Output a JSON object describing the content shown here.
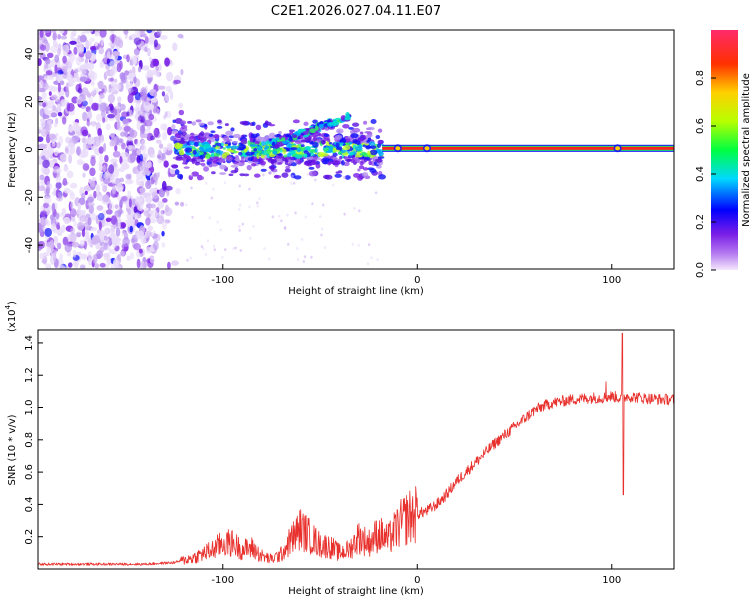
{
  "chart_data": [
    {
      "type": "heatmap",
      "title": "C2E1.2026.027.04.11.E07",
      "xlabel": "Height of straight line (km)",
      "ylabel": "Frequency (Hz)",
      "xlim": [
        -195,
        132
      ],
      "ylim": [
        -50,
        50
      ],
      "xticks": [
        -100,
        0,
        100
      ],
      "yticks": [
        -40,
        -20,
        0,
        20,
        40
      ],
      "colorbar": {
        "label": "Normalized spectral amplitude",
        "range": [
          0,
          1
        ],
        "ticks": [
          "0.0",
          "0.2",
          "0.4",
          "0.6",
          "0.8"
        ]
      },
      "features": {
        "noise_region_x": [
          -195,
          -120
        ],
        "signal_band_x": [
          -125,
          -18
        ],
        "strong_line_x": [
          -18,
          132
        ],
        "strong_line_freq": 0.5,
        "upper_branch": {
          "x": [
            -75,
            -35
          ],
          "freq": [
            2,
            14
          ]
        },
        "line_bright_spots_x": [
          -10,
          5,
          103
        ]
      }
    },
    {
      "type": "line",
      "xlabel": "Height of straight line (km)",
      "ylabel": "SNR (10 * v/v)",
      "yscale_label": "(x10",
      "yscale_exp": "4",
      "xlim": [
        -195,
        132
      ],
      "ylim": [
        0,
        1.48
      ],
      "xticks": [
        -100,
        0,
        100
      ],
      "yticks": [
        0.2,
        0.4,
        0.6,
        0.8,
        1.0,
        1.2,
        1.4
      ],
      "ytick_labels": [
        "0.2",
        "0.4",
        "0.6",
        "0.8",
        "1.0",
        "1.2",
        "1.4"
      ],
      "series": [
        {
          "name": "SNR",
          "color": "#e8302c",
          "x": [
            -195,
            -170,
            -140,
            -125,
            -115,
            -105,
            -100,
            -95,
            -90,
            -85,
            -80,
            -75,
            -70,
            -65,
            -60,
            -55,
            -50,
            -45,
            -40,
            -35,
            -30,
            -25,
            -20,
            -15,
            -10,
            -5,
            0,
            5,
            10,
            15,
            20,
            25,
            30,
            35,
            40,
            45,
            50,
            55,
            60,
            65,
            70,
            80,
            90,
            95,
            100,
            104,
            108,
            115,
            125,
            132
          ],
          "values": [
            0.03,
            0.03,
            0.03,
            0.04,
            0.07,
            0.12,
            0.16,
            0.16,
            0.12,
            0.13,
            0.08,
            0.06,
            0.09,
            0.18,
            0.25,
            0.2,
            0.15,
            0.14,
            0.1,
            0.12,
            0.2,
            0.16,
            0.22,
            0.18,
            0.26,
            0.32,
            0.34,
            0.36,
            0.4,
            0.46,
            0.54,
            0.6,
            0.66,
            0.72,
            0.78,
            0.83,
            0.88,
            0.93,
            0.98,
            1.01,
            1.03,
            1.05,
            1.06,
            1.06,
            1.07,
            1.06,
            1.07,
            1.06,
            1.05,
            1.05
          ],
          "spikes": [
            {
              "x": 97,
              "value": 1.16
            },
            {
              "x": 105.5,
              "value": 1.46
            },
            {
              "x": 106,
              "value": 0.46
            }
          ]
        }
      ]
    }
  ]
}
